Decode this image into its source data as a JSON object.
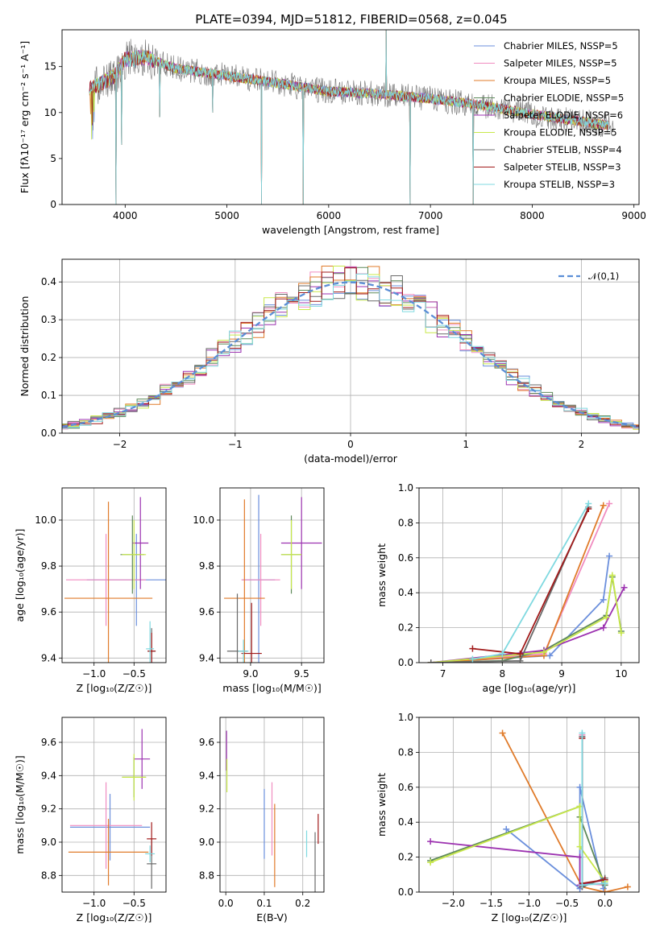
{
  "series_colors": [
    "#6b8fdc",
    "#f08cc0",
    "#e07b2a",
    "#5f8a5a",
    "#9c32b0",
    "#c8e84a",
    "#6a6a6a",
    "#a11a1a",
    "#7fd9e0"
  ],
  "chart_data": [
    {
      "id": "spectrum",
      "type": "line",
      "title": "PLATE=0394, MJD=51812, FIBERID=0568, z=0.045",
      "xlabel": "wavelength [Angstrom, rest frame]",
      "ylabel": "Flux [fλ10⁻¹⁷ erg cm⁻² s⁻¹ A⁻¹]",
      "xlim": [
        3380,
        9050
      ],
      "ylim": [
        0,
        19
      ],
      "xticks": [
        4000,
        5000,
        6000,
        7000,
        8000,
        9000
      ],
      "yticks": [
        0,
        5,
        10,
        15
      ],
      "grid": false,
      "legend": "top-right",
      "series": [
        {
          "name": "Chabrier MILES, NSSP=5",
          "color": "#6b8fdc"
        },
        {
          "name": "Salpeter MILES, NSSP=5",
          "color": "#f08cc0"
        },
        {
          "name": "Kroupa MILES, NSSP=5",
          "color": "#e07b2a"
        },
        {
          "name": "Chabrier ELODIE, NSSP=5",
          "color": "#5f8a5a"
        },
        {
          "name": "Salpeter ELODIE, NSSP=6",
          "color": "#9c32b0"
        },
        {
          "name": "Kroupa ELODIE, NSSP=5",
          "color": "#c8e84a"
        },
        {
          "name": "Chabrier STELIB, NSSP=4",
          "color": "#6a6a6a"
        },
        {
          "name": "Salpeter STELIB, NSSP=3",
          "color": "#a11a1a"
        },
        {
          "name": "Kroupa STELIB, NSSP=3",
          "color": "#7fd9e0"
        }
      ],
      "continuum": {
        "x": [
          3650,
          3900,
          4000,
          4200,
          4500,
          5000,
          5500,
          6000,
          6500,
          7000,
          7500,
          8000,
          8500,
          8800
        ],
        "y": [
          12.5,
          14.0,
          15.8,
          16.0,
          14.8,
          14.0,
          13.2,
          12.3,
          12.0,
          11.5,
          10.8,
          9.8,
          9.0,
          8.5
        ]
      },
      "features": [
        {
          "x": 3910,
          "y": 0
        },
        {
          "x": 3965,
          "y": 6.5
        },
        {
          "x": 4340,
          "y": 9.5
        },
        {
          "x": 4860,
          "y": 10.0
        },
        {
          "x": 5340,
          "y": 0
        },
        {
          "x": 5750,
          "y": 0
        },
        {
          "x": 6565,
          "y": 19
        },
        {
          "x": 6800,
          "y": 0
        },
        {
          "x": 7420,
          "y": 0
        }
      ]
    },
    {
      "id": "residuals",
      "type": "line",
      "xlabel": "(data-model)/error",
      "ylabel": "Normed distribution",
      "xlim": [
        -2.5,
        2.5
      ],
      "ylim": [
        0,
        0.46
      ],
      "xticks": [
        -2,
        -1,
        0,
        1,
        2
      ],
      "yticks": [
        0.0,
        0.1,
        0.2,
        0.3,
        0.4
      ],
      "grid": true,
      "legend": "top-right",
      "reference": {
        "name": "𝒩(0,1)",
        "color": "#5b8ed6"
      },
      "bin_width": 0.1
    },
    {
      "id": "age_vs_Z",
      "type": "scatter",
      "xlabel": "Z [log₁₀(Z/Z☉)]",
      "ylabel": "age [log₁₀(age/yr)]",
      "xlim": [
        -1.4,
        -0.1
      ],
      "ylim": [
        9.38,
        10.14
      ],
      "xticks": [
        -1.0,
        -0.5
      ],
      "yticks": [
        9.4,
        9.6,
        9.8,
        10.0
      ],
      "grid": true,
      "points": [
        {
          "x": -0.47,
          "y": 9.74,
          "xerr": 0.62,
          "yerr": 0.2,
          "color": "#6b8fdc"
        },
        {
          "x": -0.85,
          "y": 9.74,
          "xerr": 0.5,
          "yerr": 0.2,
          "color": "#f08cc0"
        },
        {
          "x": -0.82,
          "y": 9.66,
          "xerr": 0.55,
          "yerr": 0.42,
          "color": "#e07b2a"
        },
        {
          "x": -0.52,
          "y": 9.85,
          "xerr": 0.15,
          "yerr": 0.17,
          "color": "#5f8a5a"
        },
        {
          "x": -0.42,
          "y": 9.9,
          "xerr": 0.1,
          "yerr": 0.2,
          "color": "#9c32b0"
        },
        {
          "x": -0.5,
          "y": 9.85,
          "xerr": 0.15,
          "yerr": 0.15,
          "color": "#c8e84a"
        },
        {
          "x": -0.28,
          "y": 9.43,
          "xerr": 0.05,
          "yerr": 0.1,
          "color": "#6a6a6a"
        },
        {
          "x": -0.28,
          "y": 9.43,
          "xerr": 0.05,
          "yerr": 0.08,
          "color": "#a11a1a"
        },
        {
          "x": -0.3,
          "y": 9.44,
          "xerr": 0.05,
          "yerr": 0.12,
          "color": "#7fd9e0"
        }
      ]
    },
    {
      "id": "age_vs_mass",
      "type": "scatter",
      "xlabel": "mass [log₁₀(M/M☉)]",
      "ylabel": "",
      "xlim": [
        8.7,
        9.72
      ],
      "ylim": [
        9.38,
        10.14
      ],
      "xticks": [
        9.0,
        9.5
      ],
      "yticks": [
        9.4,
        9.6,
        9.8,
        10.0
      ],
      "grid": true,
      "points": [
        {
          "x": 9.08,
          "y": 9.74,
          "xerr": 0.16,
          "yerr": 0.37,
          "color": "#6b8fdc"
        },
        {
          "x": 9.1,
          "y": 9.74,
          "xerr": 0.19,
          "yerr": 0.2,
          "color": "#f08cc0"
        },
        {
          "x": 8.94,
          "y": 9.66,
          "xerr": 0.2,
          "yerr": 0.43,
          "color": "#e07b2a"
        },
        {
          "x": 9.4,
          "y": 9.85,
          "xerr": 0.1,
          "yerr": 0.17,
          "color": "#5f8a5a"
        },
        {
          "x": 9.5,
          "y": 9.9,
          "xerr": 0.2,
          "yerr": 0.2,
          "color": "#9c32b0"
        },
        {
          "x": 9.4,
          "y": 9.85,
          "xerr": 0.1,
          "yerr": 0.15,
          "color": "#c8e84a"
        },
        {
          "x": 8.87,
          "y": 9.43,
          "xerr": 0.1,
          "yerr": 0.25,
          "color": "#6a6a6a"
        },
        {
          "x": 9.01,
          "y": 9.42,
          "xerr": 0.1,
          "yerr": 0.22,
          "color": "#a11a1a"
        },
        {
          "x": 8.93,
          "y": 9.43,
          "xerr": 0.05,
          "yerr": 0.05,
          "color": "#7fd9e0"
        }
      ]
    },
    {
      "id": "mass_weight_vs_age",
      "type": "line",
      "xlabel": "age [log₁₀(age/yr)]",
      "ylabel": "mass weight",
      "xlim": [
        6.6,
        10.3
      ],
      "ylim": [
        0,
        1.0
      ],
      "xticks": [
        7,
        8,
        9,
        10
      ],
      "yticks": [
        0.0,
        0.2,
        0.4,
        0.6,
        0.8,
        1.0
      ],
      "grid": true,
      "series": [
        {
          "color": "#6b8fdc",
          "x": [
            6.8,
            8.8,
            9.7,
            9.8
          ],
          "y": [
            0.0,
            0.04,
            0.36,
            0.61
          ]
        },
        {
          "color": "#f08cc0",
          "x": [
            6.8,
            8.7,
            9.8
          ],
          "y": [
            0.0,
            0.05,
            0.91
          ]
        },
        {
          "color": "#e07b2a",
          "x": [
            6.8,
            8.7,
            9.7
          ],
          "y": [
            0.0,
            0.04,
            0.9
          ]
        },
        {
          "color": "#5f8a5a",
          "x": [
            6.8,
            8.0,
            8.7,
            9.75,
            9.85,
            10.0
          ],
          "y": [
            0.0,
            0.01,
            0.07,
            0.27,
            0.49,
            0.18
          ]
        },
        {
          "color": "#9c32b0",
          "x": [
            6.8,
            8.7,
            9.7,
            10.05
          ],
          "y": [
            0.0,
            0.07,
            0.2,
            0.43
          ]
        },
        {
          "color": "#c8e84a",
          "x": [
            6.8,
            8.7,
            9.75,
            9.85,
            10.0
          ],
          "y": [
            0.0,
            0.06,
            0.26,
            0.5,
            0.17
          ]
        },
        {
          "color": "#6a6a6a",
          "x": [
            6.8,
            8.3,
            9.45
          ],
          "y": [
            0.0,
            0.01,
            0.89
          ]
        },
        {
          "color": "#a11a1a",
          "x": [
            7.5,
            8.3,
            9.45
          ],
          "y": [
            0.08,
            0.05,
            0.88
          ]
        },
        {
          "color": "#7fd9e0",
          "x": [
            7.5,
            8.0,
            9.45
          ],
          "y": [
            0.02,
            0.05,
            0.91
          ]
        }
      ]
    },
    {
      "id": "mass_vs_Z",
      "type": "scatter",
      "xlabel": "Z [log₁₀(Z/Z☉)]",
      "ylabel": "mass [log₁₀(M/M☉)]",
      "xlim": [
        -1.4,
        -0.1
      ],
      "ylim": [
        8.7,
        9.75
      ],
      "xticks": [
        -1.0,
        -0.5
      ],
      "yticks": [
        8.8,
        9.0,
        9.2,
        9.4,
        9.6
      ],
      "grid": true,
      "points": [
        {
          "x": -0.8,
          "y": 9.09,
          "xerr": 0.5,
          "yerr": 0.2,
          "color": "#6b8fdc"
        },
        {
          "x": -0.85,
          "y": 9.1,
          "xerr": 0.45,
          "yerr": 0.26,
          "color": "#f08cc0"
        },
        {
          "x": -0.82,
          "y": 8.94,
          "xerr": 0.5,
          "yerr": 0.2,
          "color": "#e07b2a"
        },
        {
          "x": -0.5,
          "y": 9.39,
          "xerr": 0.15,
          "yerr": 0.12,
          "color": "#5f8a5a"
        },
        {
          "x": -0.4,
          "y": 9.5,
          "xerr": 0.1,
          "yerr": 0.18,
          "color": "#9c32b0"
        },
        {
          "x": -0.5,
          "y": 9.39,
          "xerr": 0.15,
          "yerr": 0.14,
          "color": "#c8e84a"
        },
        {
          "x": -0.28,
          "y": 8.87,
          "xerr": 0.06,
          "yerr": 0.15,
          "color": "#6a6a6a"
        },
        {
          "x": -0.28,
          "y": 9.02,
          "xerr": 0.06,
          "yerr": 0.1,
          "color": "#a11a1a"
        },
        {
          "x": -0.3,
          "y": 8.93,
          "xerr": 0.06,
          "yerr": 0.05,
          "color": "#7fd9e0"
        }
      ]
    },
    {
      "id": "mass_vs_ebv",
      "type": "scatter",
      "xlabel": "E(B-V)",
      "ylabel": "",
      "xlim": [
        -0.015,
        0.255
      ],
      "ylim": [
        8.7,
        9.75
      ],
      "xticks": [
        0.0,
        0.1,
        0.2
      ],
      "yticks": [
        8.8,
        9.0,
        9.2,
        9.4,
        9.6
      ],
      "grid": true,
      "points": [
        {
          "x": 0.1,
          "y": 9.11,
          "xerr": 0,
          "yerr": 0.21,
          "color": "#6b8fdc"
        },
        {
          "x": 0.12,
          "y": 9.14,
          "xerr": 0,
          "yerr": 0.22,
          "color": "#f08cc0"
        },
        {
          "x": 0.127,
          "y": 8.98,
          "xerr": 0,
          "yerr": 0.25,
          "color": "#e07b2a"
        },
        {
          "x": 0.002,
          "y": 9.55,
          "xerr": 0,
          "yerr": 0.12,
          "color": "#9c32b0"
        },
        {
          "x": 0.003,
          "y": 9.4,
          "xerr": 0,
          "yerr": 0.1,
          "color": "#c8e84a"
        },
        {
          "x": 0.232,
          "y": 8.87,
          "xerr": 0,
          "yerr": 0.19,
          "color": "#6a6a6a"
        },
        {
          "x": 0.24,
          "y": 9.08,
          "xerr": 0,
          "yerr": 0.09,
          "color": "#a11a1a"
        },
        {
          "x": 0.21,
          "y": 8.99,
          "xerr": 0,
          "yerr": 0.08,
          "color": "#7fd9e0"
        }
      ]
    },
    {
      "id": "mass_weight_vs_Z",
      "type": "line",
      "xlabel": "Z [log₁₀(Z/Z☉)]",
      "ylabel": "mass weight",
      "xlim": [
        -2.45,
        0.45
      ],
      "ylim": [
        0,
        1.0
      ],
      "xticks": [
        -2.0,
        -1.5,
        -1.0,
        -0.5,
        0.0
      ],
      "yticks": [
        0.0,
        0.2,
        0.4,
        0.6,
        0.8,
        1.0
      ],
      "grid": true,
      "series": [
        {
          "color": "#6b8fdc",
          "x": [
            -1.3,
            -0.33,
            -0.33,
            -0.02
          ],
          "y": [
            0.36,
            0.02,
            0.6,
            0.02
          ]
        },
        {
          "color": "#f08cc0",
          "x": [
            -0.3,
            -0.3,
            0.0
          ],
          "y": [
            0.9,
            0.05,
            0.04
          ]
        },
        {
          "color": "#e07b2a",
          "x": [
            -1.35,
            -0.3,
            0.0,
            0.3
          ],
          "y": [
            0.91,
            0.03,
            0.0,
            0.03
          ]
        },
        {
          "color": "#5f8a5a",
          "x": [
            -2.3,
            -0.33,
            -0.33,
            0.0
          ],
          "y": [
            0.18,
            0.49,
            0.43,
            0.04
          ]
        },
        {
          "color": "#9c32b0",
          "x": [
            -2.3,
            -0.33,
            -0.33,
            0.0
          ],
          "y": [
            0.29,
            0.2,
            0.04,
            0.07
          ]
        },
        {
          "color": "#c8e84a",
          "x": [
            -2.3,
            -0.33,
            -0.33,
            0.0
          ],
          "y": [
            0.17,
            0.49,
            0.26,
            0.06
          ]
        },
        {
          "color": "#6a6a6a",
          "x": [
            -0.3,
            -0.3,
            0.0
          ],
          "y": [
            0.89,
            0.03,
            0.08
          ]
        },
        {
          "color": "#a11a1a",
          "x": [
            -0.3,
            -0.3,
            0.0
          ],
          "y": [
            0.88,
            0.05,
            0.07
          ]
        },
        {
          "color": "#7fd9e0",
          "x": [
            -0.3,
            -0.3,
            0.0
          ],
          "y": [
            0.91,
            0.04,
            0.05
          ]
        }
      ]
    }
  ]
}
